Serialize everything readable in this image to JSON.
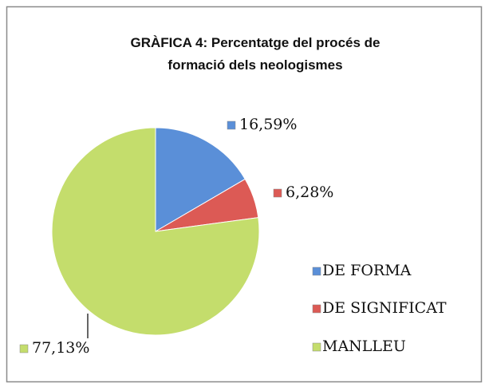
{
  "chart_data": {
    "type": "pie",
    "title": "GRÀFICA 4: Percentatge del procés de formació dels neologismes",
    "categories": [
      "DE FORMA",
      "DE SIGNIFICAT",
      "MANLLEU"
    ],
    "values": [
      16.59,
      6.28,
      77.13
    ],
    "value_labels": [
      "16,59%",
      "6,28%",
      "77,13%"
    ],
    "colors": [
      "#5a8fd8",
      "#dc5a55",
      "#c4dd6c"
    ],
    "legend": "right"
  }
}
